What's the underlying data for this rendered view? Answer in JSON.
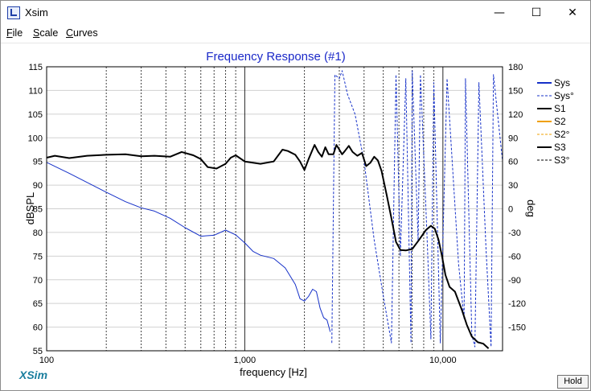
{
  "window": {
    "title": "Xsim"
  },
  "titlebar_buttons": {
    "minimize": "—",
    "maximize": "☐",
    "close": "✕"
  },
  "menu": [
    {
      "accel": "F",
      "rest": "ile"
    },
    {
      "accel": "S",
      "rest": "cale"
    },
    {
      "accel": "C",
      "rest": "urves"
    }
  ],
  "footer": {
    "brand": "XSim",
    "hold_label": "Hold"
  },
  "chart_data": {
    "type": "line",
    "title": "Frequency Response (#1)",
    "xlabel": "frequency [Hz]",
    "ylabel": "dBSPL",
    "ylabel_right": "deg",
    "x_scale": "log",
    "xlim": [
      100,
      20000
    ],
    "ylim": [
      55,
      115
    ],
    "ylim_right": [
      -180,
      180
    ],
    "x_ticks": [
      {
        "value": 100,
        "label": "100"
      },
      {
        "value": 1000,
        "label": "1,000"
      },
      {
        "value": 10000,
        "label": "10,000"
      }
    ],
    "y_ticks": [
      "55",
      "60",
      "65",
      "70",
      "75",
      "80",
      "85",
      "90",
      "95",
      "100",
      "105",
      "110",
      "115"
    ],
    "y_right_ticks": [
      "-150",
      "-120",
      "-90",
      "-60",
      "-30",
      "0",
      "30",
      "60",
      "90",
      "120",
      "150",
      "180"
    ],
    "grid": true,
    "legend_position": "right",
    "colors": {
      "sys": "#1530c8",
      "s2": "#f0a000",
      "s3": "#000000",
      "title": "#1a28c8",
      "grid": "#000000"
    },
    "series": [
      {
        "name": "Sys",
        "color": "#1530c8",
        "style": "solid",
        "axis": "left",
        "points": [
          [
            100,
            94.8
          ],
          [
            130,
            92.5
          ],
          [
            170,
            90
          ],
          [
            200,
            88.5
          ],
          [
            250,
            86.5
          ],
          [
            300,
            85.2
          ],
          [
            350,
            84.5
          ],
          [
            420,
            83
          ],
          [
            500,
            81
          ],
          [
            600,
            79.2
          ],
          [
            700,
            79.4
          ],
          [
            800,
            80.5
          ],
          [
            900,
            79.5
          ],
          [
            1000,
            77.8
          ],
          [
            1100,
            76
          ],
          [
            1200,
            75.2
          ],
          [
            1400,
            74.5
          ],
          [
            1600,
            72.5
          ],
          [
            1800,
            69
          ],
          [
            1900,
            66
          ],
          [
            2000,
            65.5
          ],
          [
            2100,
            66.5
          ],
          [
            2200,
            68
          ],
          [
            2300,
            67.5
          ],
          [
            2400,
            64
          ],
          [
            2500,
            62
          ],
          [
            2600,
            61.5
          ],
          [
            2700,
            59
          ]
        ]
      },
      {
        "name": "Sys°",
        "color": "#1530c8",
        "style": "dashed",
        "axis": "right",
        "points": [
          [
            2750,
            -170
          ],
          [
            2850,
            170
          ],
          [
            3000,
            165
          ],
          [
            3100,
            175
          ],
          [
            3300,
            145
          ],
          [
            3600,
            120
          ],
          [
            4000,
            60
          ],
          [
            4500,
            -40
          ],
          [
            5000,
            -110
          ],
          [
            5500,
            -170
          ],
          [
            5800,
            170
          ],
          [
            6100,
            -60
          ],
          [
            6500,
            165
          ],
          [
            6900,
            -170
          ],
          [
            7000,
            175
          ],
          [
            7500,
            -40
          ],
          [
            7700,
            170
          ],
          [
            8300,
            -30
          ],
          [
            8700,
            -165
          ],
          [
            9000,
            160
          ],
          [
            9700,
            -170
          ],
          [
            10500,
            165
          ],
          [
            12000,
            -70
          ],
          [
            12800,
            -140
          ],
          [
            13000,
            165
          ],
          [
            14000,
            -160
          ],
          [
            14500,
            -175
          ],
          [
            15200,
            160
          ],
          [
            16500,
            -50
          ],
          [
            17500,
            -175
          ],
          [
            18000,
            170
          ],
          [
            20000,
            60
          ]
        ]
      },
      {
        "name": "S1",
        "color": "#000000",
        "style": "solid",
        "axis": "left",
        "points": []
      },
      {
        "name": "S2",
        "color": "#f0a000",
        "style": "solid",
        "axis": "left",
        "points": []
      },
      {
        "name": "S2°",
        "color": "#f0a000",
        "style": "dashed",
        "axis": "right",
        "points": []
      },
      {
        "name": "S3",
        "color": "#000000",
        "style": "solid",
        "axis": "left",
        "points": [
          [
            100,
            95.8
          ],
          [
            110,
            96.2
          ],
          [
            130,
            95.7
          ],
          [
            160,
            96.2
          ],
          [
            200,
            96.4
          ],
          [
            250,
            96.5
          ],
          [
            300,
            96.1
          ],
          [
            350,
            96.2
          ],
          [
            420,
            96
          ],
          [
            480,
            97
          ],
          [
            550,
            96.3
          ],
          [
            600,
            95.5
          ],
          [
            650,
            93.8
          ],
          [
            720,
            93.5
          ],
          [
            800,
            94.5
          ],
          [
            850,
            95.8
          ],
          [
            900,
            96.3
          ],
          [
            1000,
            95
          ],
          [
            1200,
            94.5
          ],
          [
            1400,
            95
          ],
          [
            1550,
            97.5
          ],
          [
            1650,
            97.2
          ],
          [
            1800,
            96.4
          ],
          [
            1900,
            95
          ],
          [
            2000,
            93.2
          ],
          [
            2100,
            95.5
          ],
          [
            2250,
            98.5
          ],
          [
            2350,
            97
          ],
          [
            2450,
            96
          ],
          [
            2550,
            98
          ],
          [
            2650,
            96.5
          ],
          [
            2800,
            96.5
          ],
          [
            2900,
            98.5
          ],
          [
            3000,
            97.5
          ],
          [
            3100,
            96.5
          ],
          [
            3200,
            97.2
          ],
          [
            3350,
            98.3
          ],
          [
            3500,
            97
          ],
          [
            3700,
            96.2
          ],
          [
            3900,
            96.8
          ],
          [
            4100,
            94
          ],
          [
            4300,
            94.7
          ],
          [
            4500,
            96
          ],
          [
            4700,
            95.2
          ],
          [
            4900,
            93
          ],
          [
            5200,
            88
          ],
          [
            5500,
            83
          ],
          [
            5800,
            78
          ],
          [
            6100,
            76.3
          ],
          [
            6500,
            76.2
          ],
          [
            7000,
            76.5
          ],
          [
            7600,
            78.5
          ],
          [
            8200,
            80.5
          ],
          [
            8700,
            81.4
          ],
          [
            9100,
            80.8
          ],
          [
            9500,
            78.5
          ],
          [
            9900,
            75
          ],
          [
            10300,
            71
          ],
          [
            10800,
            68.5
          ],
          [
            11500,
            67.5
          ],
          [
            12500,
            63.5
          ],
          [
            13200,
            60.5
          ],
          [
            14000,
            58
          ],
          [
            15000,
            56.8
          ],
          [
            16000,
            56.5
          ],
          [
            17000,
            55.5
          ]
        ]
      },
      {
        "name": "S3°",
        "color": "#000000",
        "style": "dashed",
        "axis": "right",
        "points": []
      }
    ]
  }
}
